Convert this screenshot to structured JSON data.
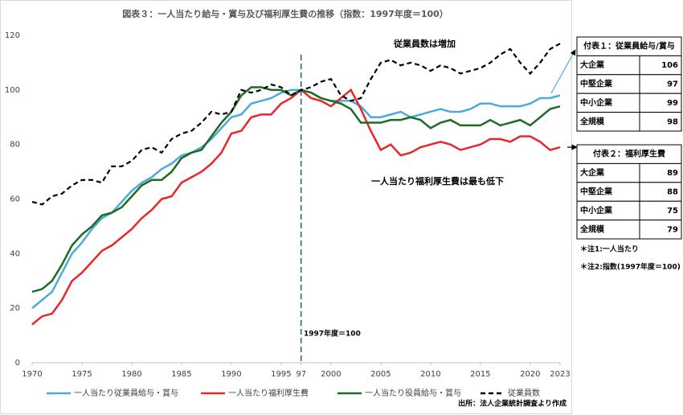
{
  "chart_data": {
    "type": "line",
    "title": "図表３：一人当たり給与・賞与及び福利厚生費の推移（指数：1997年度＝100）",
    "x": [
      1970,
      1971,
      1972,
      1973,
      1974,
      1975,
      1976,
      1977,
      1978,
      1979,
      1980,
      1981,
      1982,
      1983,
      1984,
      1985,
      1986,
      1987,
      1988,
      1989,
      1990,
      1991,
      1992,
      1993,
      1994,
      1995,
      1996,
      1997,
      1998,
      1999,
      2000,
      2001,
      2002,
      2003,
      2004,
      2005,
      2006,
      2007,
      2008,
      2009,
      2010,
      2011,
      2012,
      2013,
      2014,
      2015,
      2016,
      2017,
      2018,
      2019,
      2020,
      2021,
      2022,
      2023
    ],
    "series": [
      {
        "name": "一人当たり従業員給与・賞与",
        "color": "#4bacd9",
        "dash": false,
        "values": [
          20,
          23,
          26,
          33,
          40,
          44,
          49,
          53,
          55,
          59,
          63,
          66,
          68,
          71,
          73,
          76,
          77,
          79,
          82,
          86,
          90,
          91,
          95,
          96,
          97,
          99,
          100,
          100,
          99,
          97,
          96,
          96,
          96,
          94,
          90,
          90,
          91,
          92,
          90,
          91,
          92,
          93,
          92,
          92,
          93,
          95,
          95,
          94,
          94,
          94,
          95,
          97,
          97,
          98
        ]
      },
      {
        "name": "一人当たり福利厚生費",
        "color": "#e8262b",
        "dash": false,
        "values": [
          14,
          17,
          18,
          23,
          30,
          33,
          37,
          41,
          43,
          46,
          49,
          53,
          56,
          60,
          61,
          66,
          68,
          70,
          73,
          77,
          84,
          85,
          90,
          91,
          91,
          95,
          97,
          100,
          97,
          96,
          94,
          97,
          100,
          93,
          85,
          78,
          80,
          76,
          77,
          79,
          80,
          81,
          80,
          78,
          79,
          80,
          82,
          82,
          81,
          83,
          83,
          81,
          78,
          79
        ]
      },
      {
        "name": "一人当たり役員給与・賞与",
        "color": "#1e6b23",
        "dash": false,
        "values": [
          26,
          27,
          30,
          36,
          43,
          47,
          50,
          54,
          55,
          57,
          61,
          65,
          67,
          67,
          70,
          75,
          77,
          78,
          83,
          88,
          92,
          98,
          101,
          101,
          100,
          100,
          98,
          100,
          99,
          97,
          96,
          95,
          93,
          88,
          88,
          88,
          89,
          89,
          90,
          89,
          86,
          88,
          89,
          87,
          87,
          87,
          89,
          87,
          88,
          89,
          87,
          90,
          93,
          94
        ]
      },
      {
        "name": "従業員数",
        "color": "#000000",
        "dash": true,
        "values": [
          59,
          58,
          61,
          62,
          65,
          67,
          67,
          66,
          72,
          72,
          74,
          78,
          79,
          77,
          82,
          84,
          85,
          88,
          92,
          91,
          92,
          100,
          99,
          100,
          102,
          101,
          98,
          100,
          101,
          103,
          104,
          98,
          96,
          97,
          104,
          110,
          111,
          109,
          110,
          109,
          107,
          109,
          108,
          106,
          107,
          108,
          110,
          113,
          115,
          110,
          106,
          110,
          115,
          117
        ]
      }
    ],
    "xlim": [
      1970,
      2023
    ],
    "xticks": [
      1970,
      1975,
      1980,
      1985,
      1990,
      1995,
      {
        "value": 1997,
        "label": "97"
      },
      2000,
      2005,
      2010,
      2015,
      2020,
      2023
    ],
    "ylim": [
      0,
      120
    ],
    "yticks": [
      0,
      20,
      40,
      60,
      80,
      100,
      120
    ],
    "grid": false,
    "vline": 1997,
    "annotations": [
      "従業員数は増加",
      "一人当たり福利厚生費は最も低下",
      "1997年度＝100"
    ]
  },
  "tables": [
    {
      "title": "付表１：従業員給与/賞与",
      "rows": [
        [
          "大企業",
          106
        ],
        [
          "中堅企業",
          97
        ],
        [
          "中小企業",
          99
        ],
        [
          "全規模",
          98
        ]
      ]
    },
    {
      "title": "付表２：福利厚生費",
      "rows": [
        [
          "大企業",
          89
        ],
        [
          "中堅企業",
          88
        ],
        [
          "中小企業",
          75
        ],
        [
          "全規模",
          79
        ]
      ]
    }
  ],
  "notes": [
    "＊注1:一人当たり",
    "＊注2:指数(1997年度＝100)"
  ],
  "source": "出所：法人企業統計調査より作成"
}
